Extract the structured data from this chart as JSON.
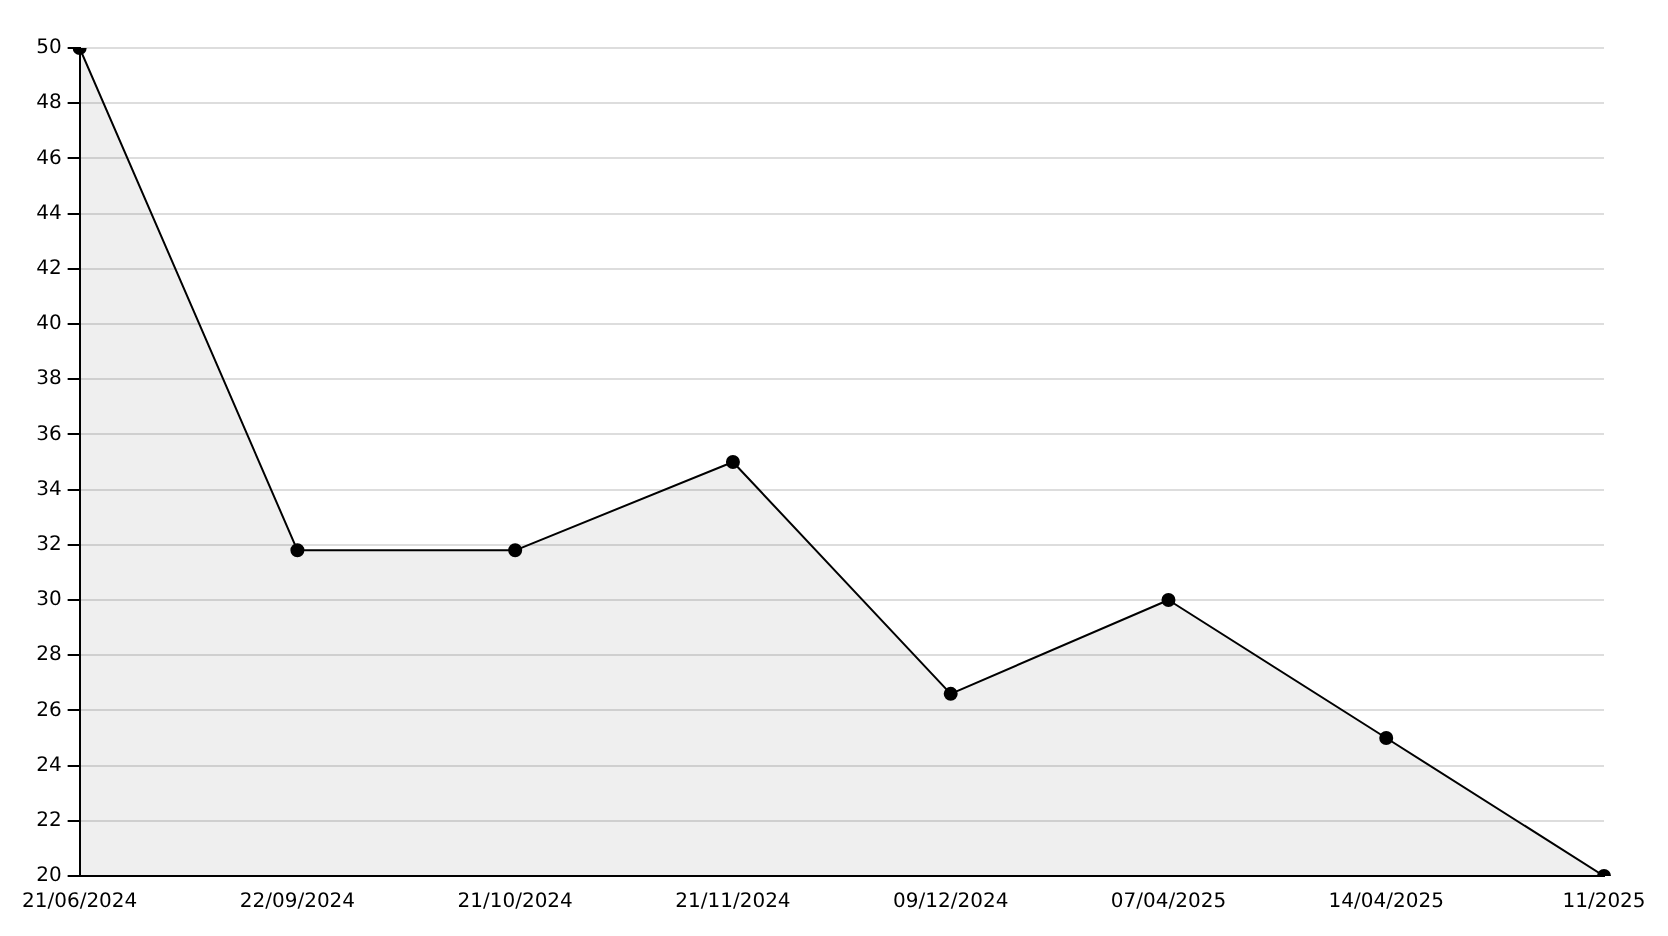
{
  "chart_data": {
    "type": "area",
    "categories": [
      "21/06/2024",
      "22/09/2024",
      "21/10/2024",
      "21/11/2024",
      "09/12/2024",
      "07/04/2025",
      "14/04/2025",
      "11/2025"
    ],
    "series": [
      {
        "color": "#000000",
        "values": [
          50,
          31.8,
          31.8,
          35,
          26.6,
          30,
          25,
          20
        ]
      }
    ],
    "ylim": [
      20,
      50
    ],
    "yticks": [
      20,
      22,
      24,
      26,
      28,
      30,
      32,
      34,
      36,
      38,
      40,
      42,
      44,
      46,
      48,
      50
    ],
    "grid": "y",
    "legend": false,
    "marker": "circle",
    "line_style": "solid"
  }
}
